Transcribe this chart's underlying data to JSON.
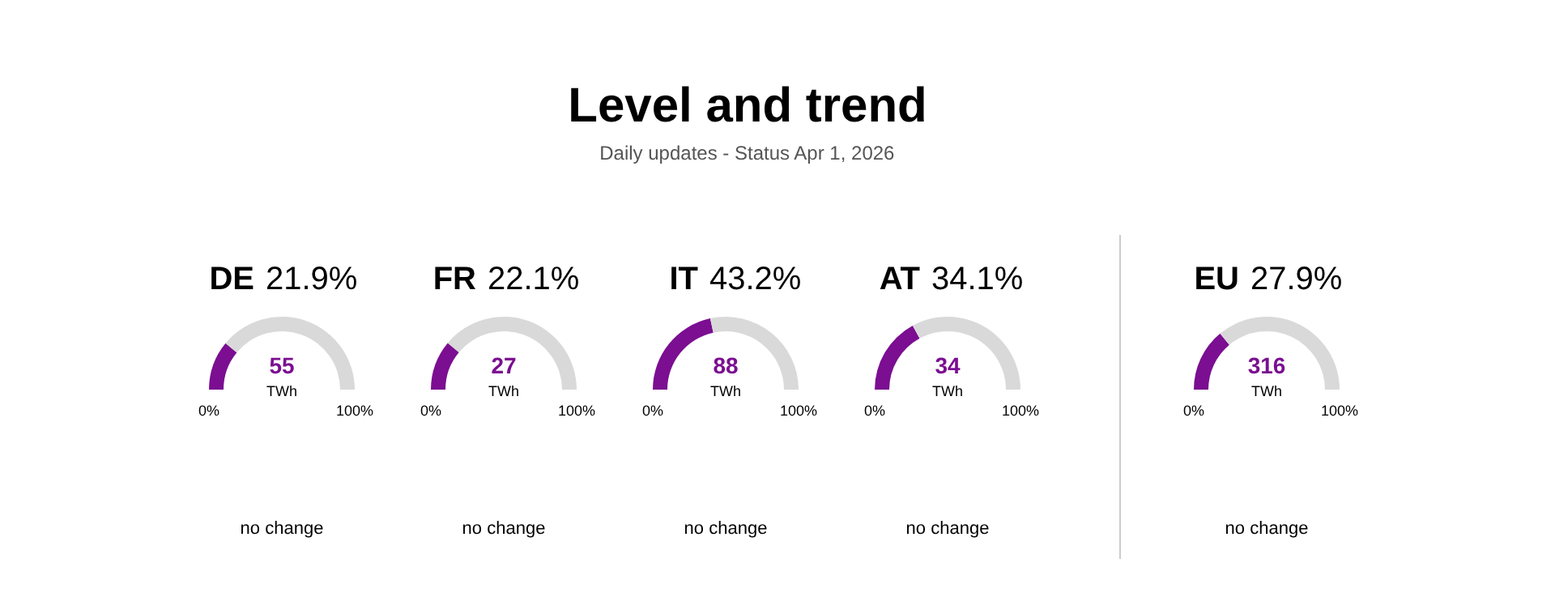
{
  "chart_data": [
    {
      "type": "other",
      "title": "Level and trend",
      "subtitle": "Daily updates - Status Apr 1, 2026"
    },
    {
      "type": "donut",
      "title": "DE 21.9%",
      "categories": [
        null,
        null
      ],
      "values": [
        21.9,
        78.1
      ],
      "colors": [
        "#7b0e91",
        "#d9d9d9"
      ],
      "annotations": [
        "55",
        "TWh",
        "0%",
        "100%",
        "no change"
      ]
    },
    {
      "type": "donut",
      "title": "FR 22.1%",
      "categories": [
        null,
        null
      ],
      "values": [
        22.1,
        77.9
      ],
      "colors": [
        "#7b0e91",
        "#d9d9d9"
      ],
      "annotations": [
        "27",
        "TWh",
        "0%",
        "100%",
        "no change"
      ]
    },
    {
      "type": "donut",
      "title": "IT 43.2%",
      "categories": [
        null,
        null
      ],
      "values": [
        43.2,
        56.8
      ],
      "colors": [
        "#7b0e91",
        "#d9d9d9"
      ],
      "annotations": [
        "88",
        "TWh",
        "0%",
        "100%",
        "no change"
      ]
    },
    {
      "type": "donut",
      "title": "AT 34.1%",
      "categories": [
        null,
        null
      ],
      "values": [
        34.1,
        65.9
      ],
      "colors": [
        "#7b0e91",
        "#d9d9d9"
      ],
      "annotations": [
        "34",
        "TWh",
        "0%",
        "100%",
        "no change"
      ]
    },
    {
      "type": "donut",
      "title": "EU 27.9%",
      "categories": [
        null,
        null
      ],
      "values": [
        27.9,
        72.1
      ],
      "colors": [
        "#7b0e91",
        "#d9d9d9"
      ],
      "annotations": [
        "316",
        "TWh",
        "0%",
        "100%",
        "no change"
      ]
    }
  ]
}
